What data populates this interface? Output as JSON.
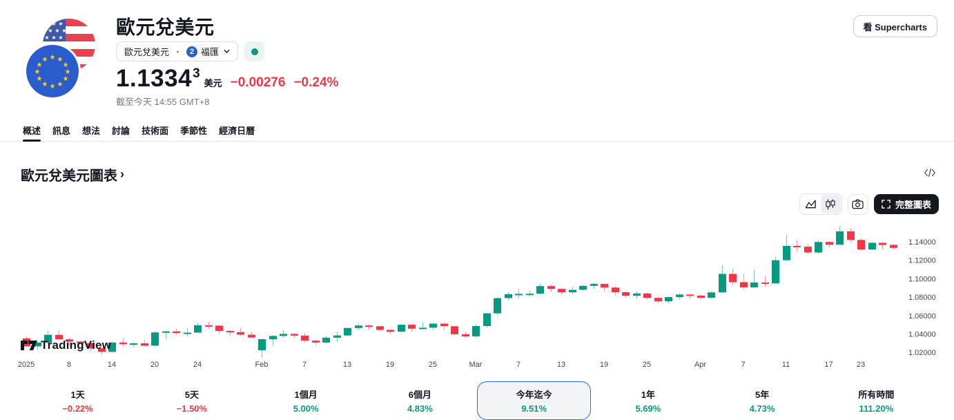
{
  "header": {
    "title": "歐元兌美元",
    "source": {
      "symbol": "歐元兌美元",
      "separator": "・",
      "exchange": "福匯",
      "exchange_badge": "2"
    },
    "market_status": "open",
    "price": {
      "value": "1.1334",
      "sup": "3",
      "currency": "美元",
      "change_abs": "−0.00276",
      "change_pct": "−0.24%"
    },
    "timestamp": "截至今天 14:55 GMT+8",
    "supercharts_label": "看 Supercharts"
  },
  "tabs": {
    "items": [
      "概述",
      "訊息",
      "想法",
      "討論",
      "技術面",
      "季節性",
      "經濟日曆"
    ],
    "active_index": 0
  },
  "chart_section": {
    "title": "歐元兌美元圖表",
    "chevron": "›",
    "fullscreen_label": "完整圖表",
    "watermark": "TradingView"
  },
  "range_bar": {
    "selected_index": 4,
    "items": [
      {
        "label": "1天",
        "value": "−0.22%",
        "direction": "down"
      },
      {
        "label": "5天",
        "value": "−1.50%",
        "direction": "down"
      },
      {
        "label": "1個月",
        "value": "5.00%",
        "direction": "up"
      },
      {
        "label": "6個月",
        "value": "4.83%",
        "direction": "up"
      },
      {
        "label": "今年迄今",
        "value": "9.51%",
        "direction": "up"
      },
      {
        "label": "1年",
        "value": "5.69%",
        "direction": "up"
      },
      {
        "label": "5年",
        "value": "4.73%",
        "direction": "up"
      },
      {
        "label": "所有時間",
        "value": "111.20%",
        "direction": "up"
      }
    ]
  },
  "colors": {
    "up": "#089981",
    "down": "#F23645",
    "accent_blue": "#2962FF",
    "change_red": "#F23645"
  },
  "icons": {
    "area_chart": "area-chart-icon",
    "candlestick": "candlestick-icon",
    "camera": "camera-icon",
    "fullscreen": "fullscreen-corners-icon",
    "embed_code": "code-icon",
    "chevron_down": "chevron-down-icon",
    "market_open_dot": "green-dot",
    "flags": "eur-usd-flags"
  },
  "chart_data": {
    "type": "candlestick",
    "title": "歐元兌美元圖表",
    "legend_position": "none",
    "grid": false,
    "watermark": "TradingView",
    "colors": {
      "up": "#089981",
      "down": "#F23645"
    },
    "y_axis": {
      "top_price": 1.14,
      "tick_step": 0.02,
      "ticks": [
        "1.14000",
        "1.12000",
        "1.10000",
        "1.08000",
        "1.06000",
        "1.04000",
        "1.02000"
      ]
    },
    "x_ticks": [
      {
        "label": "2025",
        "i": 0
      },
      {
        "label": "8",
        "i": 4
      },
      {
        "label": "14",
        "i": 8
      },
      {
        "label": "20",
        "i": 12
      },
      {
        "label": "24",
        "i": 16
      },
      {
        "label": "Feb",
        "i": 22
      },
      {
        "label": "7",
        "i": 26
      },
      {
        "label": "13",
        "i": 30
      },
      {
        "label": "19",
        "i": 34
      },
      {
        "label": "25",
        "i": 38
      },
      {
        "label": "Mar",
        "i": 42
      },
      {
        "label": "7",
        "i": 46
      },
      {
        "label": "13",
        "i": 50
      },
      {
        "label": "19",
        "i": 54
      },
      {
        "label": "25",
        "i": 58
      },
      {
        "label": "Apr",
        "i": 63
      },
      {
        "label": "7",
        "i": 67
      },
      {
        "label": "11",
        "i": 71
      },
      {
        "label": "17",
        "i": 75
      },
      {
        "label": "23",
        "i": 78
      }
    ],
    "candles": [
      {
        "d": "Jan 2",
        "o": 1.0352,
        "h": 1.0372,
        "l": 1.0259,
        "c": 1.0266
      },
      {
        "d": "Jan 3",
        "o": 1.0266,
        "h": 1.0318,
        "l": 1.0226,
        "c": 1.0308
      },
      {
        "d": "Jan 6",
        "o": 1.0308,
        "h": 1.0436,
        "l": 1.0294,
        "c": 1.0391
      },
      {
        "d": "Jan 7",
        "o": 1.0391,
        "h": 1.0435,
        "l": 1.0341,
        "c": 1.0342
      },
      {
        "d": "Jan 8",
        "o": 1.0342,
        "h": 1.0358,
        "l": 1.0273,
        "c": 1.0318
      },
      {
        "d": "Jan 9",
        "o": 1.0318,
        "h": 1.0321,
        "l": 1.0289,
        "c": 1.0301
      },
      {
        "d": "Jan 10",
        "o": 1.0301,
        "h": 1.0322,
        "l": 1.0213,
        "c": 1.0244
      },
      {
        "d": "Jan 13",
        "o": 1.0244,
        "h": 1.0249,
        "l": 1.0178,
        "c": 1.0206
      },
      {
        "d": "Jan 14",
        "o": 1.0206,
        "h": 1.0315,
        "l": 1.0196,
        "c": 1.0308
      },
      {
        "d": "Jan 15",
        "o": 1.0308,
        "h": 1.0354,
        "l": 1.0263,
        "c": 1.0289
      },
      {
        "d": "Jan 16",
        "o": 1.0289,
        "h": 1.0312,
        "l": 1.0262,
        "c": 1.0299
      },
      {
        "d": "Jan 17",
        "o": 1.0299,
        "h": 1.0332,
        "l": 1.0271,
        "c": 1.0273
      },
      {
        "d": "Jan 20",
        "o": 1.0273,
        "h": 1.0434,
        "l": 1.0266,
        "c": 1.0417
      },
      {
        "d": "Jan 21",
        "o": 1.0417,
        "h": 1.0435,
        "l": 1.0343,
        "c": 1.0428
      },
      {
        "d": "Jan 22",
        "o": 1.0428,
        "h": 1.0457,
        "l": 1.0393,
        "c": 1.041
      },
      {
        "d": "Jan 23",
        "o": 1.041,
        "h": 1.0466,
        "l": 1.0371,
        "c": 1.0415
      },
      {
        "d": "Jan 24",
        "o": 1.0415,
        "h": 1.0521,
        "l": 1.0413,
        "c": 1.0495
      },
      {
        "d": "Jan 27",
        "o": 1.0495,
        "h": 1.0532,
        "l": 1.0458,
        "c": 1.0491
      },
      {
        "d": "Jan 28",
        "o": 1.0491,
        "h": 1.0495,
        "l": 1.0403,
        "c": 1.0434
      },
      {
        "d": "Jan 29",
        "o": 1.0434,
        "h": 1.0439,
        "l": 1.0382,
        "c": 1.042
      },
      {
        "d": "Jan 30",
        "o": 1.042,
        "h": 1.0467,
        "l": 1.0383,
        "c": 1.0392
      },
      {
        "d": "Jan 31",
        "o": 1.0392,
        "h": 1.042,
        "l": 1.0359,
        "c": 1.0362
      },
      {
        "d": "Feb 3",
        "o": 1.0224,
        "h": 1.035,
        "l": 1.0141,
        "c": 1.0344
      },
      {
        "d": "Feb 4",
        "o": 1.0344,
        "h": 1.0388,
        "l": 1.0272,
        "c": 1.0379
      },
      {
        "d": "Feb 5",
        "o": 1.0379,
        "h": 1.0442,
        "l": 1.0358,
        "c": 1.0401
      },
      {
        "d": "Feb 6",
        "o": 1.0401,
        "h": 1.041,
        "l": 1.0358,
        "c": 1.0383
      },
      {
        "d": "Feb 7",
        "o": 1.0383,
        "h": 1.0407,
        "l": 1.0305,
        "c": 1.0328
      },
      {
        "d": "Feb 10",
        "o": 1.0328,
        "h": 1.0338,
        "l": 1.028,
        "c": 1.0307
      },
      {
        "d": "Feb 11",
        "o": 1.0307,
        "h": 1.038,
        "l": 1.0295,
        "c": 1.036
      },
      {
        "d": "Feb 12",
        "o": 1.036,
        "h": 1.0428,
        "l": 1.0316,
        "c": 1.0384
      },
      {
        "d": "Feb 13",
        "o": 1.0384,
        "h": 1.0467,
        "l": 1.0375,
        "c": 1.0465
      },
      {
        "d": "Feb 14",
        "o": 1.0465,
        "h": 1.0514,
        "l": 1.0445,
        "c": 1.0492
      },
      {
        "d": "Feb 17",
        "o": 1.0492,
        "h": 1.0504,
        "l": 1.0442,
        "c": 1.0484
      },
      {
        "d": "Feb 18",
        "o": 1.0484,
        "h": 1.0488,
        "l": 1.0433,
        "c": 1.0445
      },
      {
        "d": "Feb 19",
        "o": 1.0445,
        "h": 1.0448,
        "l": 1.0401,
        "c": 1.0424
      },
      {
        "d": "Feb 20",
        "o": 1.0424,
        "h": 1.0506,
        "l": 1.0412,
        "c": 1.05
      },
      {
        "d": "Feb 21",
        "o": 1.05,
        "h": 1.0509,
        "l": 1.0425,
        "c": 1.0457
      },
      {
        "d": "Feb 24",
        "o": 1.0457,
        "h": 1.0528,
        "l": 1.0451,
        "c": 1.0468
      },
      {
        "d": "Feb 25",
        "o": 1.0468,
        "h": 1.0518,
        "l": 1.044,
        "c": 1.0512
      },
      {
        "d": "Feb 26",
        "o": 1.0512,
        "h": 1.052,
        "l": 1.0444,
        "c": 1.0484
      },
      {
        "d": "Feb 27",
        "o": 1.0484,
        "h": 1.0485,
        "l": 1.0389,
        "c": 1.0398
      },
      {
        "d": "Feb 28",
        "o": 1.0398,
        "h": 1.0418,
        "l": 1.0359,
        "c": 1.0375
      },
      {
        "d": "Mar 3",
        "o": 1.0375,
        "h": 1.0503,
        "l": 1.036,
        "c": 1.0486
      },
      {
        "d": "Mar 4",
        "o": 1.0486,
        "h": 1.063,
        "l": 1.0466,
        "c": 1.0624
      },
      {
        "d": "Mar 5",
        "o": 1.0624,
        "h": 1.08,
        "l": 1.0602,
        "c": 1.0789
      },
      {
        "d": "Mar 6",
        "o": 1.0789,
        "h": 1.0854,
        "l": 1.0766,
        "c": 1.0832
      },
      {
        "d": "Mar 7",
        "o": 1.0832,
        "h": 1.0888,
        "l": 1.0782,
        "c": 1.0835
      },
      {
        "d": "Mar 10",
        "o": 1.0835,
        "h": 1.0873,
        "l": 1.0805,
        "c": 1.0837
      },
      {
        "d": "Mar 11",
        "o": 1.0837,
        "h": 1.0947,
        "l": 1.0824,
        "c": 1.0919
      },
      {
        "d": "Mar 12",
        "o": 1.0919,
        "h": 1.0932,
        "l": 1.0858,
        "c": 1.0889
      },
      {
        "d": "Mar 13",
        "o": 1.0889,
        "h": 1.0893,
        "l": 1.0822,
        "c": 1.0853
      },
      {
        "d": "Mar 14",
        "o": 1.0853,
        "h": 1.0912,
        "l": 1.083,
        "c": 1.0879
      },
      {
        "d": "Mar 17",
        "o": 1.0879,
        "h": 1.093,
        "l": 1.0867,
        "c": 1.0922
      },
      {
        "d": "Mar 18",
        "o": 1.0922,
        "h": 1.0954,
        "l": 1.0888,
        "c": 1.0944
      },
      {
        "d": "Mar 19",
        "o": 1.0944,
        "h": 1.0946,
        "l": 1.086,
        "c": 1.0903
      },
      {
        "d": "Mar 20",
        "o": 1.0903,
        "h": 1.0918,
        "l": 1.0815,
        "c": 1.0853
      },
      {
        "d": "Mar 21",
        "o": 1.0853,
        "h": 1.086,
        "l": 1.0796,
        "c": 1.0815
      },
      {
        "d": "Mar 24",
        "o": 1.0815,
        "h": 1.0858,
        "l": 1.078,
        "c": 1.084
      },
      {
        "d": "Mar 25",
        "o": 1.084,
        "h": 1.0846,
        "l": 1.0777,
        "c": 1.0792
      },
      {
        "d": "Mar 26",
        "o": 1.0792,
        "h": 1.08,
        "l": 1.0733,
        "c": 1.0754
      },
      {
        "d": "Mar 27",
        "o": 1.0754,
        "h": 1.0803,
        "l": 1.0732,
        "c": 1.08
      },
      {
        "d": "Mar 28",
        "o": 1.08,
        "h": 1.0838,
        "l": 1.0767,
        "c": 1.0828
      },
      {
        "d": "Mar 31",
        "o": 1.0828,
        "h": 1.0835,
        "l": 1.0783,
        "c": 1.0816
      },
      {
        "d": "Apr 1",
        "o": 1.0816,
        "h": 1.0831,
        "l": 1.0769,
        "c": 1.0793
      },
      {
        "d": "Apr 2",
        "o": 1.0793,
        "h": 1.086,
        "l": 1.0785,
        "c": 1.0851
      },
      {
        "d": "Apr 3",
        "o": 1.0851,
        "h": 1.1147,
        "l": 1.0849,
        "c": 1.1052
      },
      {
        "d": "Apr 4",
        "o": 1.1052,
        "h": 1.1109,
        "l": 1.0924,
        "c": 1.0962
      },
      {
        "d": "Apr 7",
        "o": 1.0962,
        "h": 1.105,
        "l": 1.0882,
        "c": 1.0905
      },
      {
        "d": "Apr 8",
        "o": 1.0905,
        "h": 1.1095,
        "l": 1.0903,
        "c": 1.0959
      },
      {
        "d": "Apr 9",
        "o": 1.0959,
        "h": 1.1028,
        "l": 1.0914,
        "c": 1.0948
      },
      {
        "d": "Apr 10",
        "o": 1.0948,
        "h": 1.1241,
        "l": 1.0945,
        "c": 1.12
      },
      {
        "d": "Apr 11",
        "o": 1.12,
        "h": 1.1474,
        "l": 1.1192,
        "c": 1.1355
      },
      {
        "d": "Apr 14",
        "o": 1.1355,
        "h": 1.1424,
        "l": 1.1294,
        "c": 1.1347
      },
      {
        "d": "Apr 15",
        "o": 1.1347,
        "h": 1.1366,
        "l": 1.1264,
        "c": 1.1284
      },
      {
        "d": "Apr 16",
        "o": 1.1284,
        "h": 1.1414,
        "l": 1.1271,
        "c": 1.1398
      },
      {
        "d": "Apr 17",
        "o": 1.1398,
        "h": 1.1404,
        "l": 1.1336,
        "c": 1.1368
      },
      {
        "d": "Apr 21",
        "o": 1.1368,
        "h": 1.1573,
        "l": 1.1368,
        "c": 1.1513
      },
      {
        "d": "Apr 22",
        "o": 1.1513,
        "h": 1.1547,
        "l": 1.1391,
        "c": 1.142
      },
      {
        "d": "Apr 23",
        "o": 1.142,
        "h": 1.144,
        "l": 1.1308,
        "c": 1.1316
      },
      {
        "d": "Apr 24",
        "o": 1.1316,
        "h": 1.1401,
        "l": 1.1308,
        "c": 1.1389
      },
      {
        "d": "Apr 25",
        "o": 1.1389,
        "h": 1.1393,
        "l": 1.1319,
        "c": 1.1366
      },
      {
        "d": "Apr 28",
        "o": 1.1366,
        "h": 1.1377,
        "l": 1.1319,
        "c": 1.1334
      }
    ]
  }
}
